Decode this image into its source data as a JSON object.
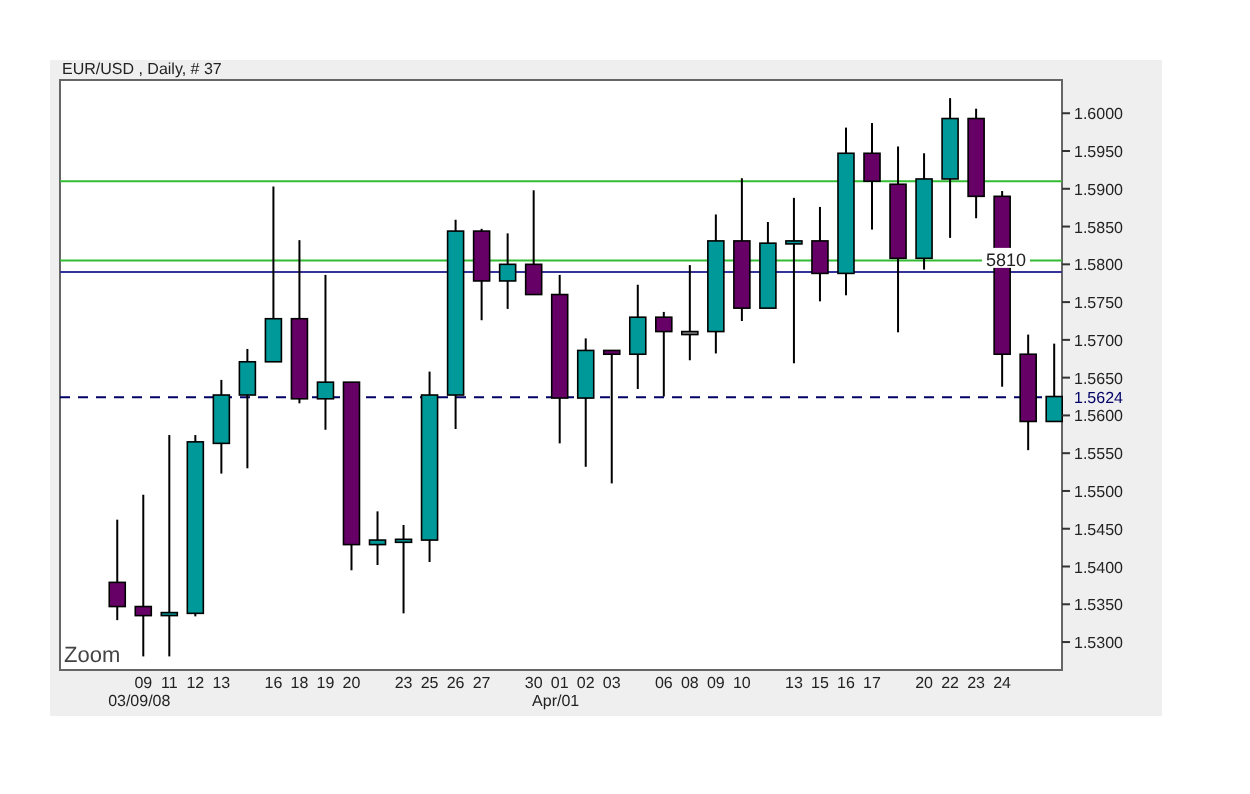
{
  "chart_data": {
    "type": "candlestick",
    "title": "EUR/USD , Daily, # 37",
    "categories": [
      null,
      "09\n03/09/08",
      "11",
      "12",
      "13",
      null,
      "16",
      "18",
      "19",
      "20",
      null,
      "23",
      "25",
      "26",
      "27",
      null,
      "30",
      "01\nApr/01",
      "02",
      "03",
      null,
      "06",
      "08",
      "09",
      "10",
      null,
      "13",
      "15",
      "16",
      "17",
      null,
      "20",
      "22",
      "23",
      "24",
      null,
      null
    ],
    "ohlc": [
      [
        1.5379,
        1.5462,
        1.5329,
        1.5347
      ],
      [
        1.5347,
        1.5495,
        1.5281,
        1.5335
      ],
      [
        1.5337,
        1.5574,
        1.5281,
        1.5339
      ],
      [
        1.5338,
        1.5574,
        1.5334,
        1.5565
      ],
      [
        1.5563,
        1.5647,
        1.5523,
        1.5627
      ],
      [
        1.5627,
        1.5688,
        1.553,
        1.5671
      ],
      [
        1.5671,
        1.5903,
        1.5671,
        1.5728
      ],
      [
        1.5728,
        1.5832,
        1.5616,
        1.5622
      ],
      [
        1.5622,
        1.5786,
        1.5581,
        1.5644
      ],
      [
        1.5644,
        1.5644,
        1.5395,
        1.5429
      ],
      [
        1.5429,
        1.5473,
        1.5402,
        1.5435
      ],
      [
        1.5435,
        1.5455,
        1.5338,
        1.5436
      ],
      [
        1.5435,
        1.5658,
        1.5406,
        1.5627
      ],
      [
        1.5627,
        1.5859,
        1.5582,
        1.5844
      ],
      [
        1.5844,
        1.5847,
        1.5726,
        1.5778
      ],
      [
        1.5778,
        1.5841,
        1.5741,
        1.58
      ],
      [
        1.58,
        1.5898,
        1.576,
        1.576
      ],
      [
        1.576,
        1.5786,
        1.5563,
        1.5623
      ],
      [
        1.5623,
        1.5702,
        1.5532,
        1.5686
      ],
      [
        1.5686,
        1.5686,
        1.551,
        1.5681
      ],
      [
        1.5681,
        1.5773,
        1.5635,
        1.573
      ],
      [
        1.573,
        1.5737,
        1.5625,
        1.5711
      ],
      [
        1.5711,
        1.5799,
        1.5673,
        1.5711
      ],
      [
        1.5711,
        1.5866,
        1.5682,
        1.5831
      ],
      [
        1.5831,
        1.5914,
        1.5725,
        1.5742
      ],
      [
        1.5742,
        1.5856,
        1.5742,
        1.5828
      ],
      [
        1.5828,
        1.5888,
        1.5669,
        1.5831
      ],
      [
        1.5831,
        1.5876,
        1.5751,
        1.5788
      ],
      [
        1.5788,
        1.5981,
        1.5759,
        1.5947
      ],
      [
        1.5947,
        1.5987,
        1.5846,
        1.591
      ],
      [
        1.5906,
        1.5956,
        1.571,
        1.5808
      ],
      [
        1.5808,
        1.5947,
        1.5793,
        1.5913
      ],
      [
        1.5913,
        1.602,
        1.5835,
        1.5993
      ],
      [
        1.5993,
        1.6006,
        1.5861,
        1.589
      ],
      [
        1.589,
        1.5897,
        1.5638,
        1.5681
      ],
      [
        1.5681,
        1.5707,
        1.5554,
        1.5592
      ],
      [
        1.5592,
        1.5695,
        1.5592,
        1.5625
      ]
    ],
    "colors": [
      "#660066",
      "#660066",
      "#009999",
      "#009999",
      "#009999",
      "#009999",
      "#009999",
      "#660066",
      "#009999",
      "#660066",
      "#009999",
      "#009999",
      "#009999",
      "#009999",
      "#660066",
      "#009999",
      "#660066",
      "#660066",
      "#009999",
      "#660066",
      "#009999",
      "#660066",
      "#888888",
      "#009999",
      "#660066",
      "#009999",
      "#009999",
      "#660066",
      "#009999",
      "#660066",
      "#660066",
      "#009999",
      "#009999",
      "#660066",
      "#660066",
      "#660066",
      "#009999"
    ],
    "ylim": [
      1.5263,
      1.6044
    ],
    "yticks": [
      {
        "value": 1.53,
        "label": "1.5300"
      },
      {
        "value": 1.535,
        "label": "1.5350"
      },
      {
        "value": 1.54,
        "label": "1.5400"
      },
      {
        "value": 1.545,
        "label": "1.5450"
      },
      {
        "value": 1.55,
        "label": "1.5500"
      },
      {
        "value": 1.555,
        "label": "1.5550"
      },
      {
        "value": 1.56,
        "label": "1.5600"
      },
      {
        "value": 1.565,
        "label": "1.5650"
      },
      {
        "value": 1.57,
        "label": "1.5700"
      },
      {
        "value": 1.575,
        "label": "1.5750"
      },
      {
        "value": 1.58,
        "label": "1.5800"
      },
      {
        "value": 1.585,
        "label": "1.5850"
      },
      {
        "value": 1.59,
        "label": "1.5900"
      },
      {
        "value": 1.595,
        "label": "1.5950"
      },
      {
        "value": 1.6,
        "label": "1.6000"
      }
    ],
    "ref_lines": [
      {
        "axis": "y",
        "value": 1.5624,
        "label": "1.5624",
        "color": "#000066",
        "line_style": "dashed"
      },
      {
        "axis": "y",
        "value": 1.591,
        "color": "#33bb33"
      },
      {
        "axis": "y",
        "value": 1.5805,
        "color": "#33bb33"
      },
      {
        "axis": "y",
        "value": 1.579,
        "color": "#333399"
      }
    ],
    "annotations": [
      "Zoom",
      {
        "text": "5810",
        "y": 1.579
      }
    ]
  }
}
